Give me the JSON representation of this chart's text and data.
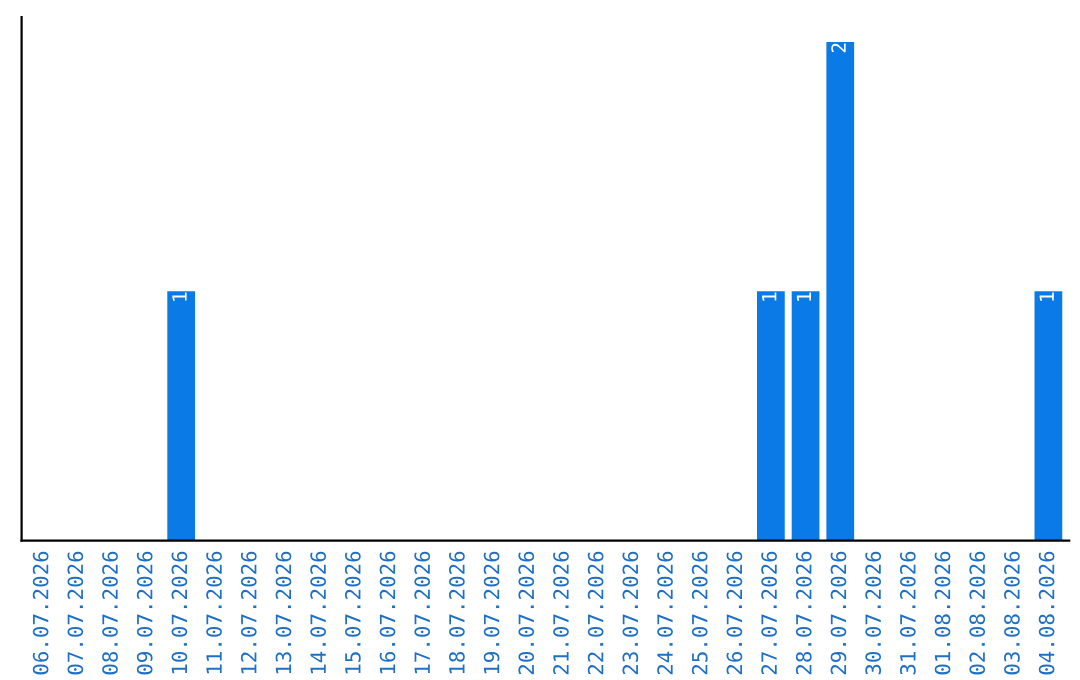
{
  "chart_data": {
    "type": "bar",
    "categories": [
      "06.07.2026",
      "07.07.2026",
      "08.07.2026",
      "09.07.2026",
      "10.07.2026",
      "11.07.2026",
      "12.07.2026",
      "13.07.2026",
      "14.07.2026",
      "15.07.2026",
      "16.07.2026",
      "17.07.2026",
      "18.07.2026",
      "19.07.2026",
      "20.07.2026",
      "21.07.2026",
      "22.07.2026",
      "23.07.2026",
      "24.07.2026",
      "25.07.2026",
      "26.07.2026",
      "27.07.2026",
      "28.07.2026",
      "29.07.2026",
      "30.07.2026",
      "31.07.2026",
      "01.08.2026",
      "02.08.2026",
      "03.08.2026",
      "04.08.2026"
    ],
    "values": [
      0,
      0,
      0,
      0,
      1,
      0,
      0,
      0,
      0,
      0,
      0,
      0,
      0,
      0,
      0,
      0,
      0,
      0,
      0,
      0,
      0,
      1,
      1,
      2,
      0,
      0,
      0,
      0,
      0,
      1
    ],
    "value_labels": [
      null,
      null,
      null,
      null,
      "1",
      null,
      null,
      null,
      null,
      null,
      null,
      null,
      null,
      null,
      null,
      null,
      null,
      null,
      null,
      null,
      null,
      "1",
      "1",
      "2",
      null,
      null,
      null,
      null,
      null,
      "1"
    ],
    "color": "#0a7be6",
    "ylim": [
      0,
      2.1
    ],
    "tick_labels": "x",
    "grid": false
  }
}
